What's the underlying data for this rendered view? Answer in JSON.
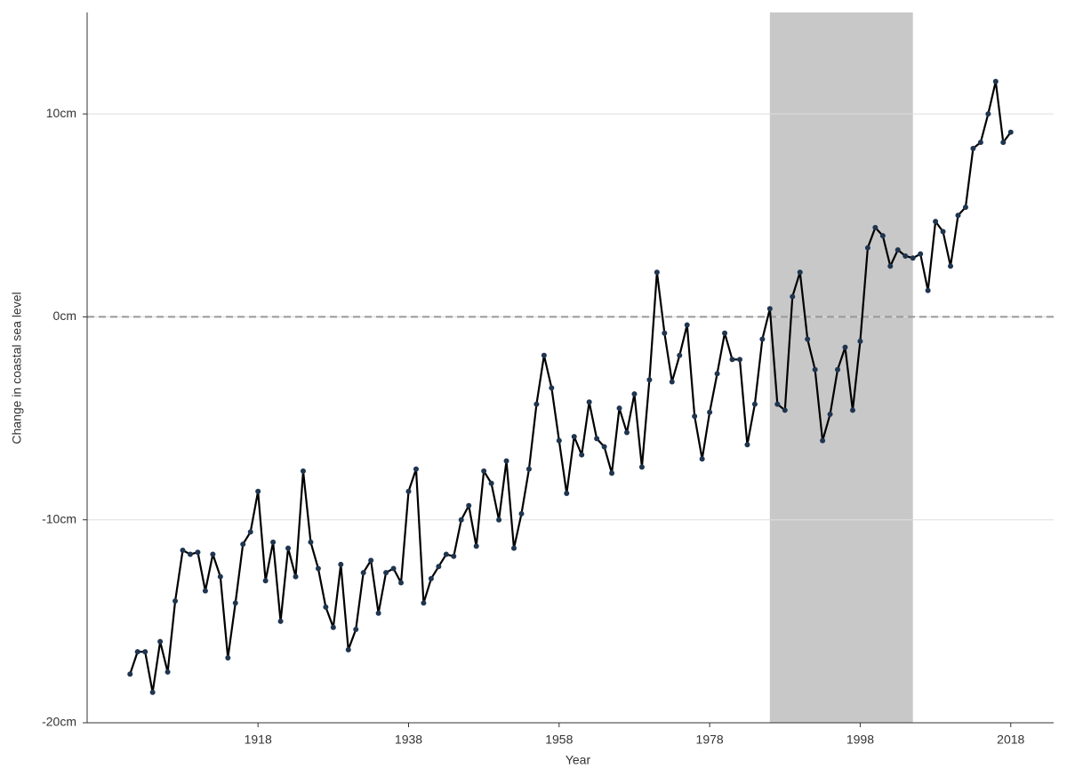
{
  "chart_data": {
    "type": "line",
    "xlabel": "Year",
    "ylabel": "Change in coastal sea level",
    "x": [
      1901,
      1902,
      1903,
      1904,
      1905,
      1906,
      1907,
      1908,
      1909,
      1910,
      1911,
      1912,
      1913,
      1914,
      1915,
      1916,
      1917,
      1918,
      1919,
      1920,
      1921,
      1922,
      1923,
      1924,
      1925,
      1926,
      1927,
      1928,
      1929,
      1930,
      1931,
      1932,
      1933,
      1934,
      1935,
      1936,
      1937,
      1938,
      1939,
      1940,
      1941,
      1942,
      1943,
      1944,
      1945,
      1946,
      1947,
      1948,
      1949,
      1950,
      1951,
      1952,
      1953,
      1954,
      1955,
      1956,
      1957,
      1958,
      1959,
      1960,
      1961,
      1962,
      1963,
      1964,
      1965,
      1966,
      1967,
      1968,
      1969,
      1970,
      1971,
      1972,
      1973,
      1974,
      1975,
      1976,
      1977,
      1978,
      1979,
      1980,
      1981,
      1982,
      1983,
      1984,
      1985,
      1986,
      1987,
      1988,
      1989,
      1990,
      1991,
      1992,
      1993,
      1994,
      1995,
      1996,
      1997,
      1998,
      1999,
      2000,
      2001,
      2002,
      2003,
      2004,
      2005,
      2006,
      2007,
      2008,
      2009,
      2010,
      2011,
      2012,
      2013,
      2014,
      2015,
      2016,
      2017,
      2018
    ],
    "series": [
      {
        "color": "#000000",
        "marker_color": "#1f3550",
        "values": [
          -17.6,
          -16.5,
          -16.5,
          -18.5,
          -16.0,
          -17.5,
          -14.0,
          -11.5,
          -11.7,
          -11.6,
          -13.5,
          -11.7,
          -12.8,
          -16.8,
          -14.1,
          -11.2,
          -10.6,
          -8.6,
          -13.0,
          -11.1,
          -15.0,
          -11.4,
          -12.8,
          -7.6,
          -11.1,
          -12.4,
          -14.3,
          -15.3,
          -12.2,
          -16.4,
          -15.4,
          -12.6,
          -12.0,
          -14.6,
          -12.6,
          -12.4,
          -13.1,
          -8.6,
          -7.5,
          -14.1,
          -12.9,
          -12.3,
          -11.7,
          -11.8,
          -10.0,
          -9.3,
          -11.3,
          -7.6,
          -8.2,
          -10.0,
          -7.1,
          -11.4,
          -9.7,
          -7.5,
          -4.3,
          -1.9,
          -3.5,
          -6.1,
          -8.7,
          -5.9,
          -6.8,
          -4.2,
          -6.0,
          -6.4,
          -7.7,
          -4.5,
          -5.7,
          -3.8,
          -7.4,
          -3.1,
          2.2,
          -0.8,
          -3.2,
          -1.9,
          -0.4,
          -4.9,
          -7.0,
          -4.7,
          -2.8,
          -0.8,
          -2.1,
          -2.1,
          -6.3,
          -4.3,
          -1.1,
          0.4,
          -4.3,
          -4.6,
          1.0,
          2.2,
          -1.1,
          -2.6,
          -6.1,
          -4.8,
          -2.6,
          -1.5,
          -4.6,
          -1.2,
          3.4,
          4.4,
          4.0,
          2.5,
          3.3,
          3.0,
          2.9,
          3.1,
          1.3,
          4.7,
          4.2,
          2.5,
          5.0,
          5.4,
          8.3,
          8.6,
          10.0,
          11.6,
          8.6,
          9.1
        ]
      }
    ],
    "xlim": [
      1895.3,
      2023.7
    ],
    "xticks": [
      1918,
      1938,
      1958,
      1978,
      1998,
      2018
    ],
    "ylim": [
      -20,
      15
    ],
    "yticks": [
      {
        "value": -20,
        "label": "-20cm"
      },
      {
        "value": -10,
        "label": "-10cm"
      },
      {
        "value": 0,
        "label": "0cm"
      },
      {
        "value": 10,
        "label": "10cm"
      }
    ],
    "grid": true,
    "hline": 0,
    "shaded_region": [
      1986,
      2005
    ],
    "shade_color": "#c8c8c8"
  }
}
